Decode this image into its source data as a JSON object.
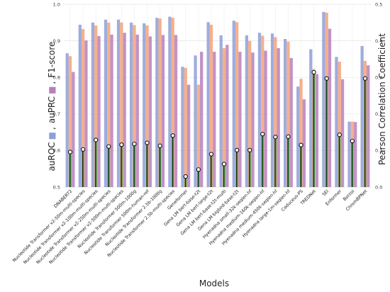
{
  "chart_data": {
    "type": "bar",
    "xlabel": "Models",
    "ylabel_left_parts": [
      "auROC",
      "auPRC",
      "F1-score"
    ],
    "ylabel_right": "Pearson Correlation Coefficient",
    "ylim_left": [
      0.5,
      1.0
    ],
    "ylim_right": [
      0.0,
      0.5
    ],
    "grid": true,
    "categories": [
      "DNABERT2",
      "Nucleotide Transformer v2-50m-multi-species",
      "Nucleotide Transformer v2-100m-multi-species",
      "Nucleotide Transformer v2-250m-multi-species",
      "Nucleotide Transformer v2-500m-multi-species",
      "Nucleotide Transformer 500m-1000g",
      "Nucleotide Transformer 500m-human-ref",
      "Nucleotide Transformer 2.5b-1000g",
      "Nucleotide Transformer 2.5b-multi-species",
      "Geneformer",
      "Gena LM bert-base-t2t",
      "Gena LM bert-large-t2t",
      "Gena LM bert-base-t2t-multi",
      "Gena LM bigbird-base-t2t",
      "Hyenadna small-32k-seqlen-hf",
      "Hyenadna medium-160k-seqlen-hf",
      "Hyenadna medium-450k-seqlen-hf",
      "Hyenadna large-1m-seqlen-hf",
      "Caduceus-PS",
      "TREDNet",
      "SEI",
      "Enformer",
      "Borzoi",
      "ChromBPNet"
    ],
    "series": [
      {
        "name": "auROC",
        "color": "#8e9fd6",
        "values": [
          0.866,
          0.944,
          0.95,
          0.958,
          0.958,
          0.95,
          0.948,
          0.963,
          0.966,
          0.829,
          0.86,
          0.951,
          0.915,
          0.955,
          0.915,
          0.922,
          0.92,
          0.905,
          0.775,
          0.877,
          0.979,
          0.856,
          0.679,
          0.886
        ]
      },
      {
        "name": "auPRC",
        "color": "#f3a27a",
        "values": [
          0.858,
          0.932,
          0.942,
          0.95,
          0.95,
          0.943,
          0.942,
          0.961,
          0.963,
          0.826,
          0.78,
          0.944,
          0.88,
          0.951,
          0.9,
          0.914,
          0.91,
          0.898,
          0.796,
          0.823,
          0.977,
          0.843,
          0.679,
          0.845
        ]
      },
      {
        "name": "F1-score",
        "color": "#b77fbb",
        "values": [
          0.815,
          0.901,
          0.913,
          0.917,
          0.922,
          0.917,
          0.912,
          0.916,
          0.916,
          0.78,
          0.87,
          0.87,
          0.889,
          0.87,
          0.868,
          0.873,
          0.88,
          0.853,
          0.74,
          0.809,
          0.933,
          0.795,
          0.678,
          0.833
        ]
      }
    ],
    "pearson_line_color": "#3a8a3a",
    "pearson": [
      0.096,
      0.103,
      0.129,
      0.111,
      0.116,
      0.118,
      0.121,
      0.113,
      0.141,
      0.029,
      0.048,
      0.09,
      0.063,
      0.101,
      0.101,
      0.145,
      0.137,
      0.138,
      0.115,
      0.314,
      0.297,
      0.143,
      0.126,
      0.297
    ],
    "yticks_left": [
      "0.5",
      "0.6",
      "0.7",
      "0.8",
      "0.9",
      "1.0"
    ],
    "yticks_right": [
      "0.0",
      "0.1",
      "0.2",
      "0.3",
      "0.4",
      "0.5"
    ]
  }
}
